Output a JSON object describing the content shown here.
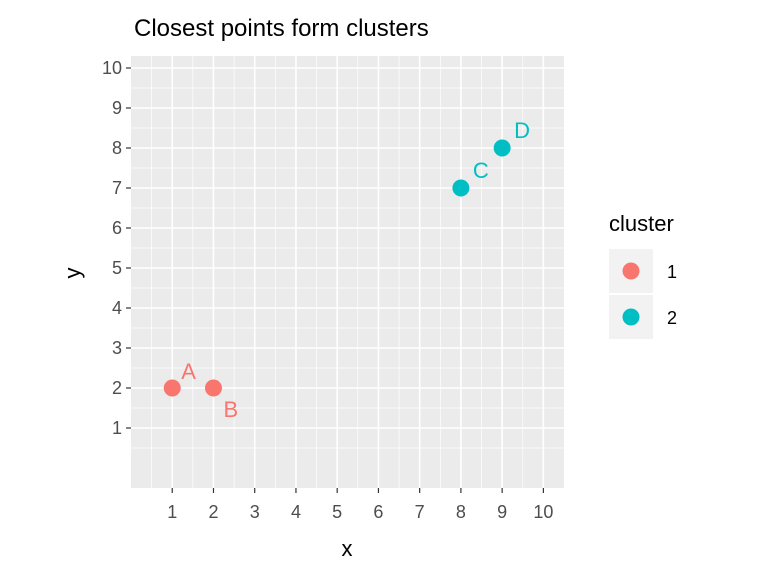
{
  "chart_data": {
    "type": "scatter",
    "title": "Closest points form clusters",
    "xlabel": "x",
    "ylabel": "y",
    "xlim": [
      0,
      10.5
    ],
    "ylim": [
      -0.5,
      10.3
    ],
    "xticks": [
      1,
      2,
      3,
      4,
      5,
      6,
      7,
      8,
      9,
      10
    ],
    "yticks": [
      1,
      2,
      3,
      4,
      5,
      6,
      7,
      8,
      9,
      10
    ],
    "grid": true,
    "legend": {
      "title": "cluster",
      "position": "right",
      "entries": [
        {
          "label": "1",
          "color": "#F8766D"
        },
        {
          "label": "2",
          "color": "#00BFC4"
        }
      ]
    },
    "points": [
      {
        "label": "A",
        "x": 1,
        "y": 2,
        "cluster": "1"
      },
      {
        "label": "B",
        "x": 2,
        "y": 2,
        "cluster": "1"
      },
      {
        "label": "C",
        "x": 8,
        "y": 7,
        "cluster": "2"
      },
      {
        "label": "D",
        "x": 9,
        "y": 8,
        "cluster": "2"
      }
    ]
  },
  "colors": {
    "panel_background": "#EBEBEB",
    "grid_line": "#FFFFFF",
    "cluster_1": "#F8766D",
    "cluster_2": "#00BFC4"
  }
}
